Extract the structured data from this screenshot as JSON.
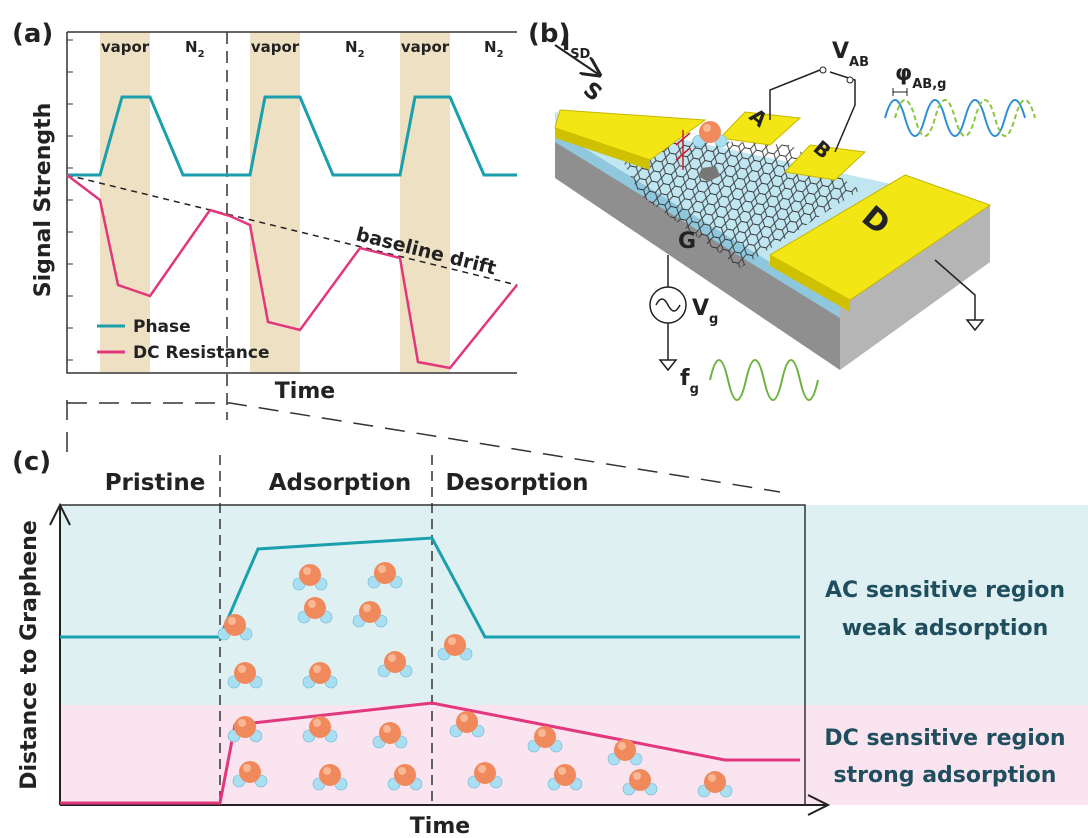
{
  "panel_a": {
    "label": "(a)",
    "y_axis": "Signal Strength",
    "x_axis": "Time",
    "vapor": [
      "vapor",
      "vapor",
      "vapor"
    ],
    "n2": [
      {
        "main": "N",
        "sub": "2"
      },
      {
        "main": "N",
        "sub": "2"
      },
      {
        "main": "N",
        "sub": "2"
      }
    ],
    "annotation": "baseline drift",
    "legend": [
      "Phase",
      "DC Resistance"
    ]
  },
  "panel_b": {
    "label": "(b)",
    "current": {
      "main": "I",
      "sub": "SD"
    },
    "pads": [
      "S",
      "A",
      "B",
      "D"
    ],
    "gate": "G",
    "voltage_ab": {
      "main": "V",
      "sub": "AB"
    },
    "phase": {
      "main": "φ",
      "sub": "AB,g"
    },
    "gate_voltage": {
      "main": "V",
      "sub": "g"
    },
    "frequency": {
      "main": "f",
      "sub": "g"
    }
  },
  "panel_c": {
    "label": "(c)",
    "stages": [
      "Pristine",
      "Adsorption",
      "Desorption"
    ],
    "y_axis": "Distance to Graphene",
    "x_axis": "Time",
    "ac_region": [
      "AC sensitive region",
      "weak adsorption"
    ],
    "dc_region": [
      "DC sensitive region",
      "strong adsorption"
    ]
  }
}
